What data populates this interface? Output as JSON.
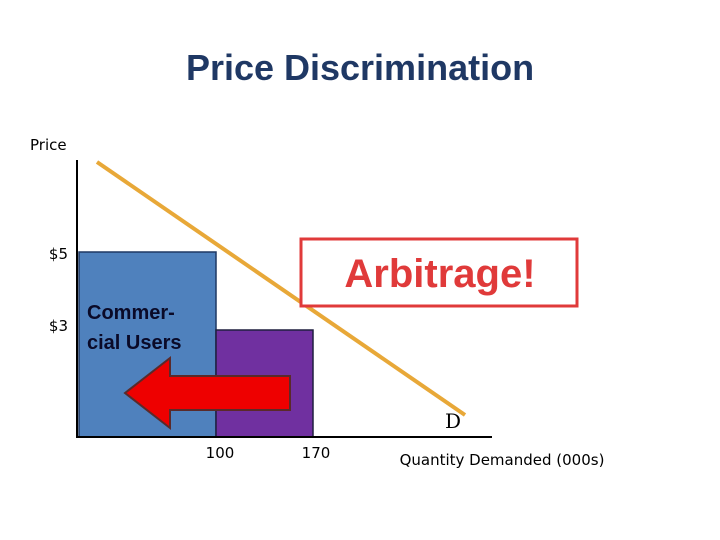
{
  "header": {
    "title": "Price Discrimination"
  },
  "axes": {
    "y_label": "Price",
    "x_label": "Quantity Demanded (000s)",
    "y_ticks": [
      "$5",
      "$3"
    ],
    "x_ticks": [
      "100",
      "170"
    ]
  },
  "labels": {
    "segment": [
      "Commer-",
      "cial Users"
    ],
    "callout": "Arbitrage!",
    "curve": "D"
  }
}
